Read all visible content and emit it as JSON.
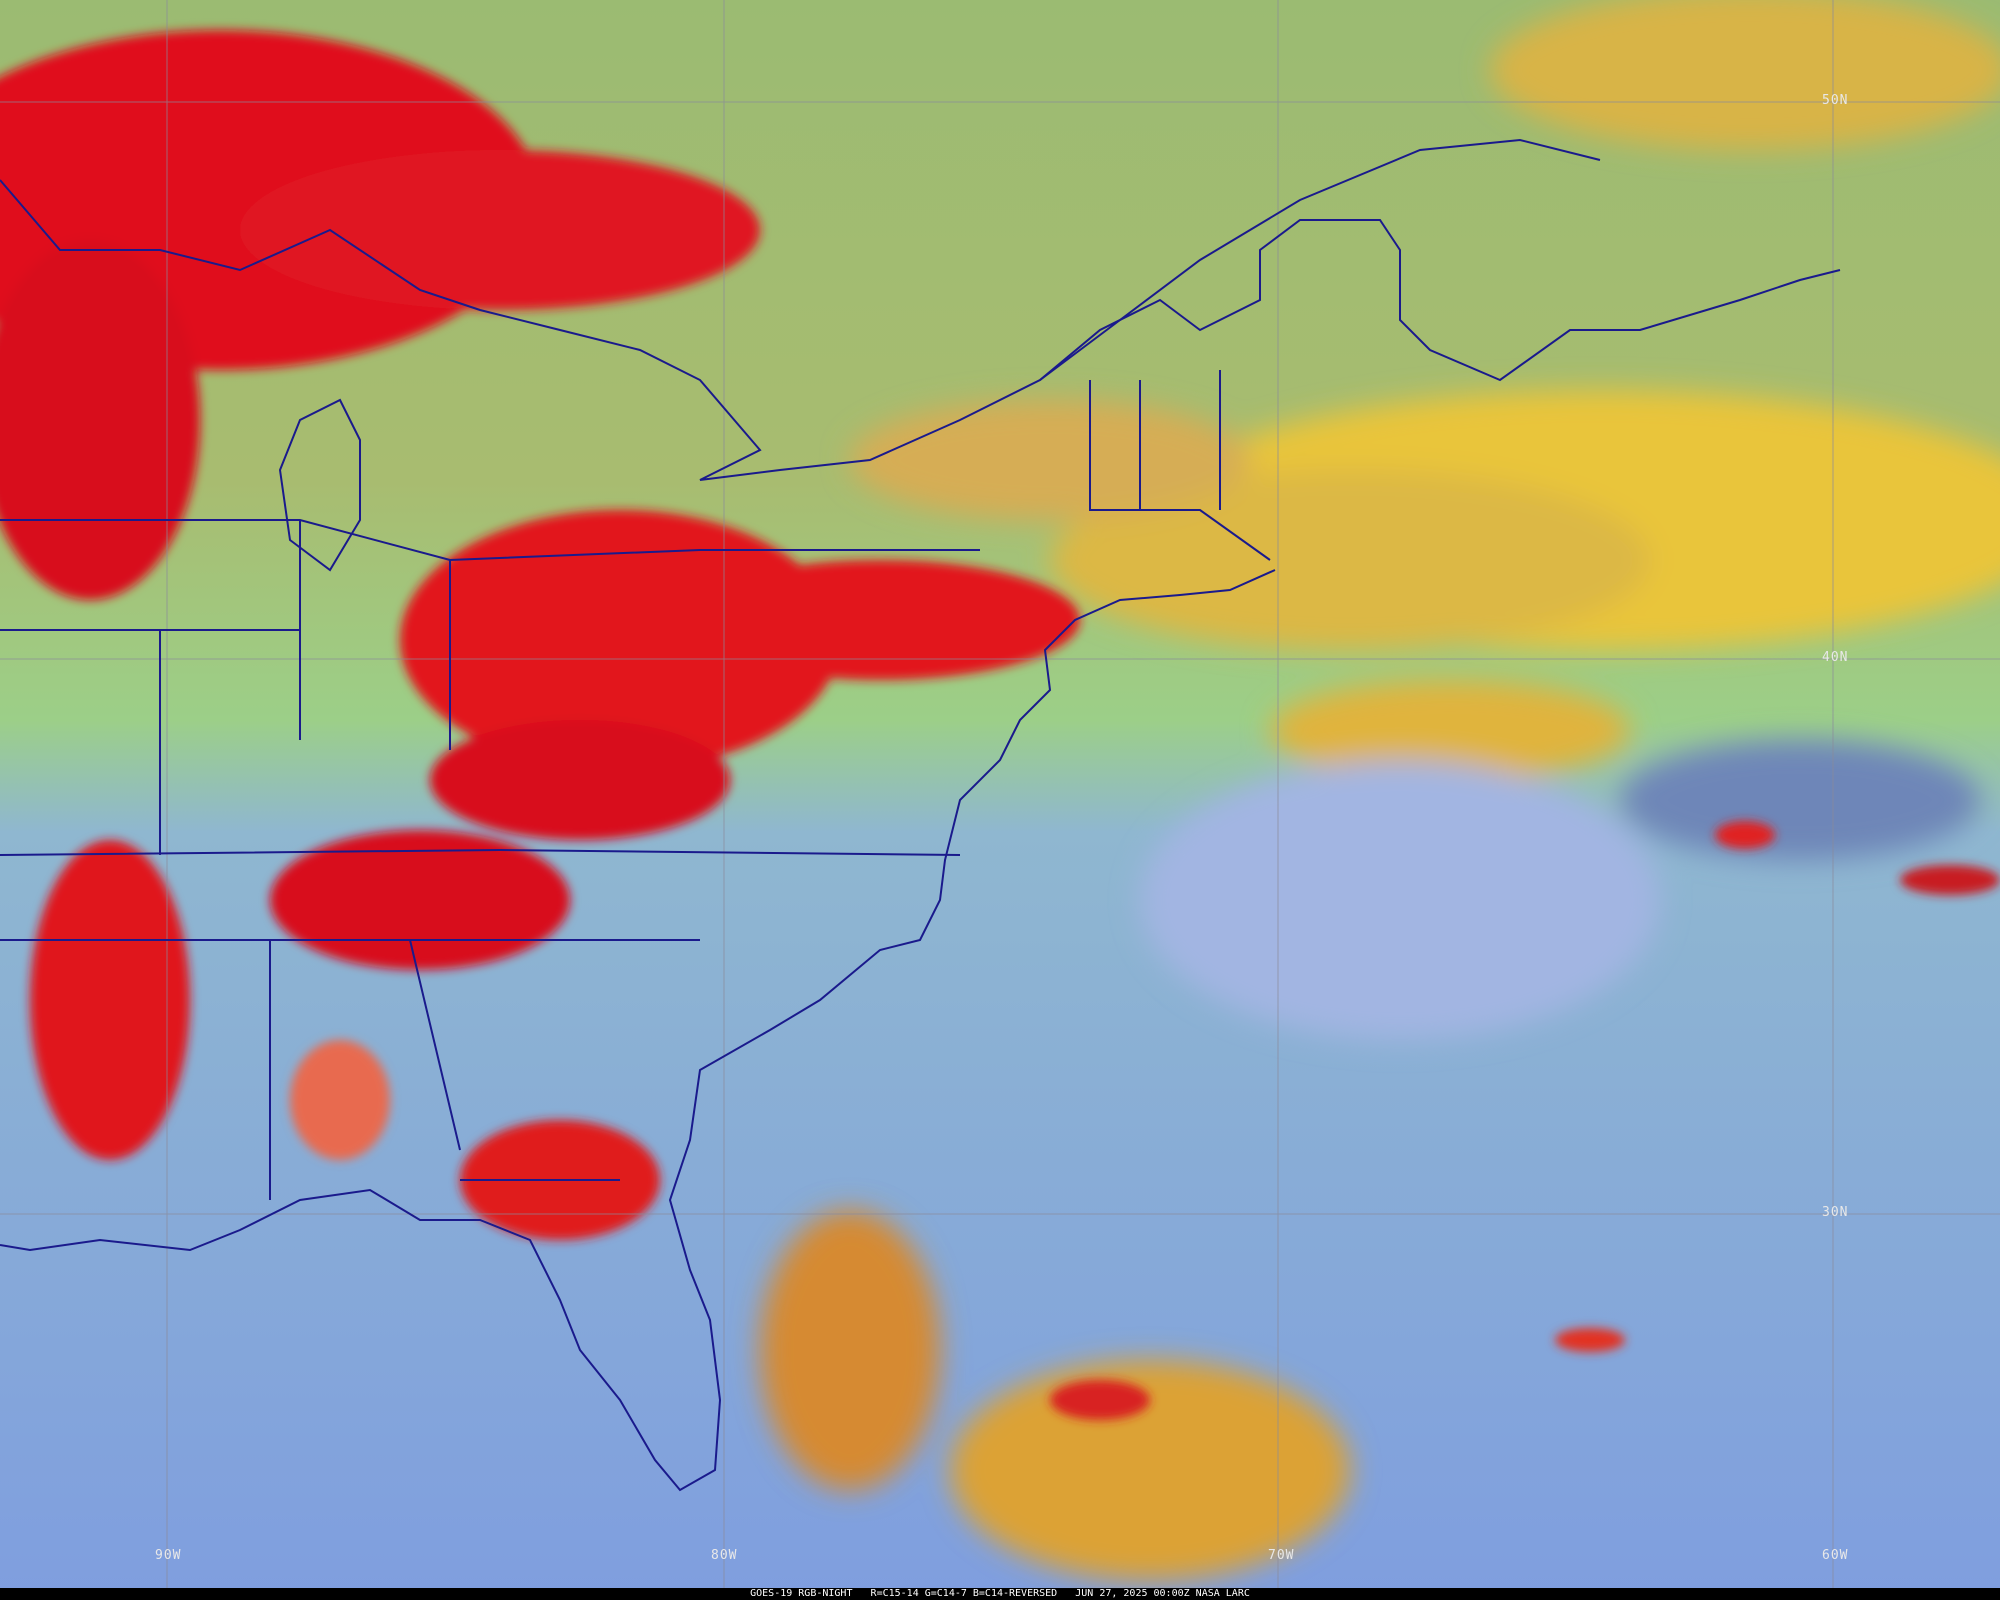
{
  "map": {
    "latitude_labels": [
      "50N",
      "40N",
      "30N"
    ],
    "longitude_labels": [
      "90W",
      "80W",
      "70W",
      "60W"
    ],
    "colors": {
      "deep_cloud": "#e0101e",
      "mid_cloud": "#f2c43a",
      "dry_air": "#9ab86e",
      "clear_ocean": "#86a3e0",
      "borders": "#1a1a8c",
      "grid": "#8a8a9a"
    }
  },
  "caption": {
    "satellite": "GOES-19 RGB-NIGHT",
    "recipe": "R=C15-14 G=C14-7 B=C14-REVERSED",
    "datetime": "JUN 27, 2025 00:00Z",
    "credit": "NASA LARC"
  }
}
